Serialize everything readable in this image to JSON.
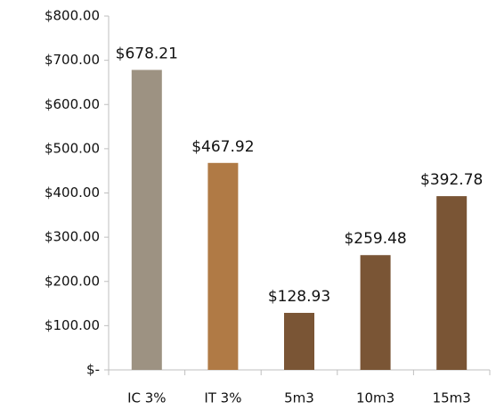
{
  "chart_data": {
    "type": "bar",
    "categories": [
      "IC 3%",
      "IT 3%",
      "5m3",
      "10m3",
      "15m3"
    ],
    "values": [
      678.21,
      467.92,
      128.93,
      259.48,
      392.78
    ],
    "value_labels": [
      "$678.21",
      "$467.92",
      "$128.93",
      "$259.48",
      "$392.78"
    ],
    "colors": [
      "#9d9282",
      "#b07a45",
      "#7a5535",
      "#7a5535",
      "#7a5535"
    ],
    "ylim": [
      0,
      800
    ],
    "yticks": [
      {
        "value": 0,
        "label": "$-"
      },
      {
        "value": 100,
        "label": "$100.00"
      },
      {
        "value": 200,
        "label": "$200.00"
      },
      {
        "value": 300,
        "label": "$300.00"
      },
      {
        "value": 400,
        "label": "$400.00"
      },
      {
        "value": 500,
        "label": "$500.00"
      },
      {
        "value": 600,
        "label": "$600.00"
      },
      {
        "value": 700,
        "label": "$700.00"
      },
      {
        "value": 800,
        "label": "$800.00"
      }
    ],
    "grid": false
  }
}
